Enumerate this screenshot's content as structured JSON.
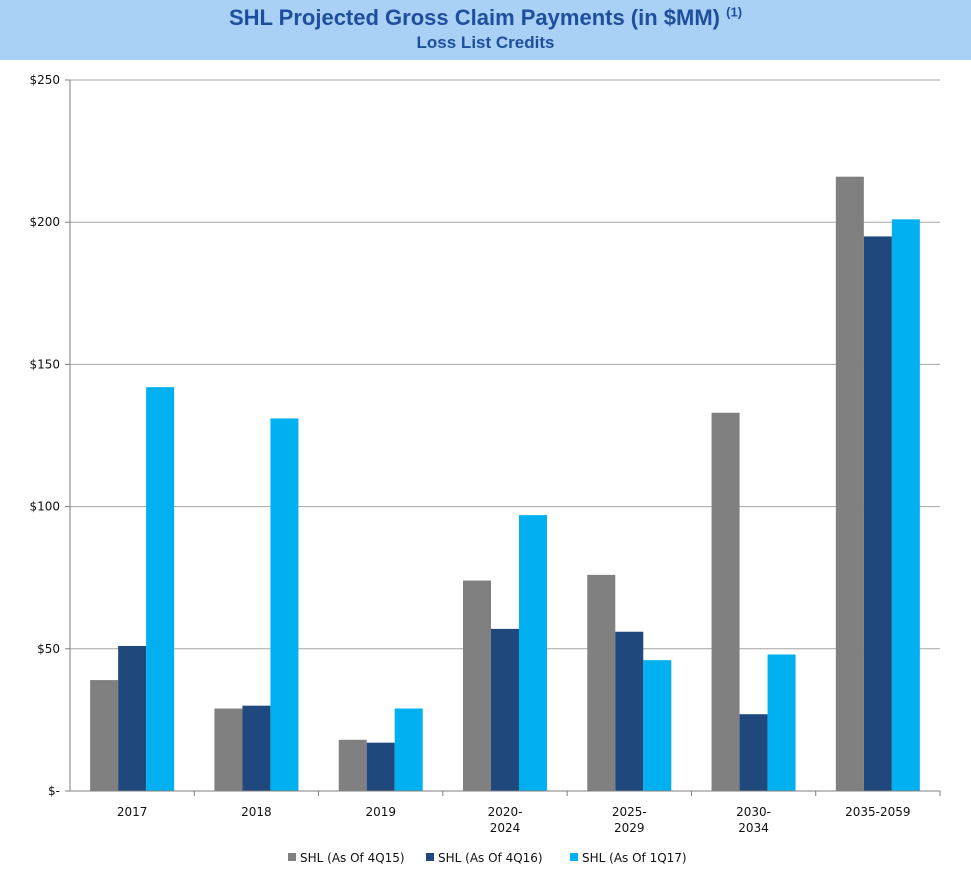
{
  "chart_data": {
    "type": "bar",
    "title": "SHL Projected Gross Claim Payments (in $MM)",
    "title_footnote": "(1)",
    "subtitle": "Loss List Credits",
    "categories": [
      [
        "2017"
      ],
      [
        "2018"
      ],
      [
        "2019"
      ],
      [
        "2020-",
        "2024"
      ],
      [
        "2025-",
        "2029"
      ],
      [
        "2030-",
        "2034"
      ],
      [
        "2035-2059"
      ]
    ],
    "series": [
      {
        "name": "SHL (As Of 4Q15)",
        "color": "#808080",
        "values": [
          39,
          29,
          18,
          74,
          76,
          133,
          216
        ]
      },
      {
        "name": "SHL (As Of 4Q16)",
        "color": "#1f497d",
        "values": [
          51,
          30,
          17,
          57,
          56,
          27,
          195
        ]
      },
      {
        "name": "SHL (As Of 1Q17)",
        "color": "#00b0f0",
        "values": [
          142,
          131,
          29,
          97,
          46,
          48,
          201
        ]
      }
    ],
    "ylim": [
      0,
      250
    ],
    "yticks": [
      0,
      50,
      100,
      150,
      200,
      250
    ],
    "ytick_labels": [
      "$-",
      "$50",
      "$100",
      "$150",
      "$200",
      "$250"
    ],
    "grid": true,
    "legend_position": "bottom"
  }
}
